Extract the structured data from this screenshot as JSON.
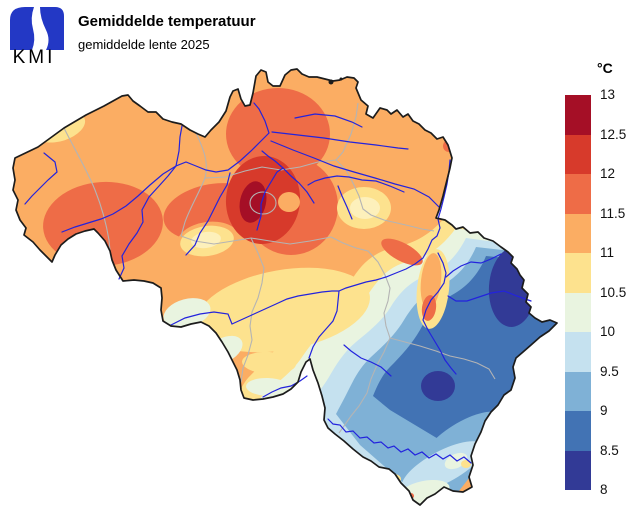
{
  "header": {
    "logo_text": "KMI",
    "title": "Gemiddelde temperatuur",
    "subtitle": "gemiddelde lente 2025"
  },
  "legend": {
    "unit": "°C",
    "ticks": [
      "13",
      "12.5",
      "12",
      "11.5",
      "11",
      "10.5",
      "10",
      "9.5",
      "9",
      "8.5",
      "8"
    ],
    "scale": [
      "t130",
      "t125",
      "t120",
      "t115",
      "t110",
      "t100",
      "t95",
      "t90",
      "t85",
      "t80"
    ]
  },
  "palette": {
    "t130": "#a50f26",
    "t125": "#d73a2b",
    "t120": "#ee6c47",
    "t115": "#fbad63",
    "t110": "#fde28e",
    "t105": "#fdf0bb",
    "t100": "#e9f4e0",
    "t95": "#c5e1ef",
    "t90": "#7fb1d6",
    "t85": "#4273b4",
    "t80": "#323a96",
    "river": "#2323dd",
    "province": "#b4b4b4",
    "border": "#1c1c1c",
    "logo_blue": "#2338c5",
    "background": "#ffffff"
  },
  "chart_data": {
    "type": "heatmap",
    "subtype": "filled-contour-temperature-map",
    "region": "Belgium",
    "title": "Gemiddelde temperatuur",
    "subtitle": "gemiddelde lente 2025",
    "unit": "°C",
    "scale_ticks": [
      13,
      12.5,
      12,
      11.5,
      11,
      10.5,
      10,
      9.5,
      9,
      8.5,
      8
    ],
    "scale_range": [
      8,
      13
    ],
    "legend_position": "right",
    "observed_values": {
      "coast_northwest": [
        10.5,
        11.5
      ],
      "flanders_center_north": [
        11.5,
        12.5
      ],
      "brussels_hotspot_max": [
        12.5,
        13
      ],
      "hesbaye_patch": [
        10.5,
        11
      ],
      "south_center_band": [
        10,
        11
      ],
      "ardennes_southeast": [
        8.5,
        10
      ],
      "high_fens_minimum": [
        8,
        8.5
      ],
      "saint_hubert_minimum": [
        8,
        8.5
      ],
      "far_south_gaume": [
        9.5,
        10.5
      ]
    }
  }
}
